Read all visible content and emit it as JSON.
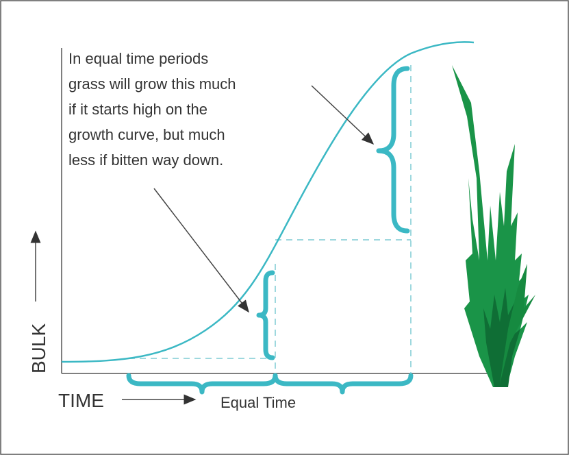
{
  "annotation": {
    "lines": [
      "In equal time periods",
      "grass will grow this much",
      "if it starts high on the",
      "growth curve, but much",
      "less if bitten way down."
    ]
  },
  "axes": {
    "y_label": "BULK",
    "x_label": "TIME"
  },
  "bracket_label": "Equal Time"
}
